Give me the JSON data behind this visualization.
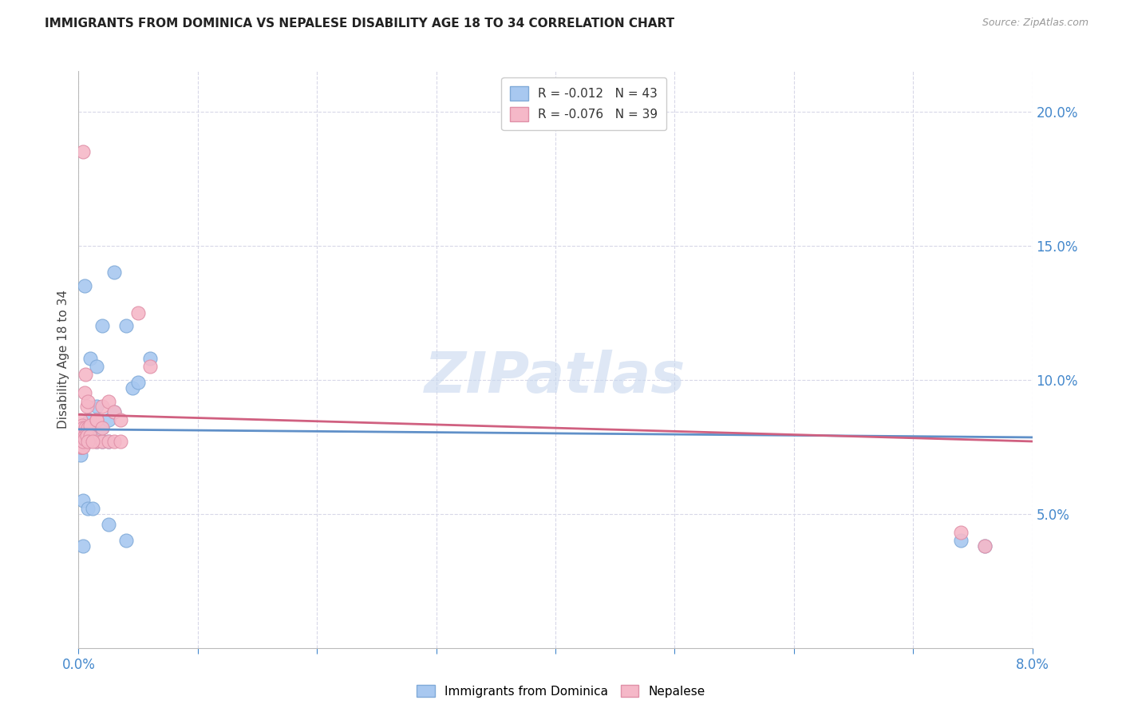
{
  "title": "IMMIGRANTS FROM DOMINICA VS NEPALESE DISABILITY AGE 18 TO 34 CORRELATION CHART",
  "source": "Source: ZipAtlas.com",
  "ylabel": "Disability Age 18 to 34",
  "legend_entries": [
    {
      "label": "Immigrants from Dominica",
      "R": "-0.012",
      "N": "43",
      "color": "#a8c8f0"
    },
    {
      "label": "Nepalese",
      "R": "-0.076",
      "N": "39",
      "color": "#f5b8c8"
    }
  ],
  "x_min": 0.0,
  "x_max": 0.08,
  "y_min": 0.0,
  "y_max": 0.215,
  "yticks": [
    0.05,
    0.1,
    0.15,
    0.2
  ],
  "ytick_labels": [
    "5.0%",
    "10.0%",
    "15.0%",
    "20.0%"
  ],
  "xticks": [
    0.0,
    0.01,
    0.02,
    0.03,
    0.04,
    0.05,
    0.06,
    0.07,
    0.08
  ],
  "watermark": "ZIPatlas",
  "blue_scatter": [
    [
      0.0005,
      0.135
    ],
    [
      0.001,
      0.108
    ],
    [
      0.0008,
      0.083
    ],
    [
      0.0015,
      0.105
    ],
    [
      0.002,
      0.12
    ],
    [
      0.0002,
      0.076
    ],
    [
      0.0002,
      0.072
    ],
    [
      0.0003,
      0.082
    ],
    [
      0.0003,
      0.079
    ],
    [
      0.0004,
      0.08
    ],
    [
      0.0004,
      0.079
    ],
    [
      0.0005,
      0.082
    ],
    [
      0.0005,
      0.079
    ],
    [
      0.0006,
      0.079
    ],
    [
      0.0002,
      0.075
    ],
    [
      0.0003,
      0.075
    ],
    [
      0.0003,
      0.075
    ],
    [
      0.0004,
      0.076
    ],
    [
      0.0005,
      0.076
    ],
    [
      0.0006,
      0.077
    ],
    [
      0.0007,
      0.077
    ],
    [
      0.0009,
      0.085
    ],
    [
      0.0012,
      0.082
    ],
    [
      0.0015,
      0.09
    ],
    [
      0.002,
      0.082
    ],
    [
      0.0025,
      0.085
    ],
    [
      0.003,
      0.088
    ],
    [
      0.0015,
      0.077
    ],
    [
      0.002,
      0.077
    ],
    [
      0.0025,
      0.077
    ],
    [
      0.003,
      0.14
    ],
    [
      0.004,
      0.12
    ],
    [
      0.0045,
      0.097
    ],
    [
      0.005,
      0.099
    ],
    [
      0.006,
      0.108
    ],
    [
      0.0004,
      0.055
    ],
    [
      0.0008,
      0.052
    ],
    [
      0.0012,
      0.052
    ],
    [
      0.0025,
      0.046
    ],
    [
      0.004,
      0.04
    ],
    [
      0.074,
      0.04
    ],
    [
      0.076,
      0.038
    ],
    [
      0.0004,
      0.038
    ]
  ],
  "pink_scatter": [
    [
      0.0004,
      0.185
    ],
    [
      0.0006,
      0.102
    ],
    [
      0.0005,
      0.095
    ],
    [
      0.0007,
      0.09
    ],
    [
      0.0008,
      0.092
    ],
    [
      0.0002,
      0.085
    ],
    [
      0.0003,
      0.083
    ],
    [
      0.0004,
      0.082
    ],
    [
      0.0004,
      0.08
    ],
    [
      0.0005,
      0.079
    ],
    [
      0.0006,
      0.082
    ],
    [
      0.0007,
      0.081
    ],
    [
      0.0008,
      0.082
    ],
    [
      0.001,
      0.083
    ],
    [
      0.0015,
      0.085
    ],
    [
      0.0002,
      0.075
    ],
    [
      0.0003,
      0.075
    ],
    [
      0.0004,
      0.075
    ],
    [
      0.0004,
      0.077
    ],
    [
      0.0005,
      0.078
    ],
    [
      0.0007,
      0.079
    ],
    [
      0.001,
      0.079
    ],
    [
      0.0015,
      0.077
    ],
    [
      0.002,
      0.077
    ],
    [
      0.002,
      0.09
    ],
    [
      0.0025,
      0.092
    ],
    [
      0.003,
      0.088
    ],
    [
      0.0035,
      0.085
    ],
    [
      0.005,
      0.125
    ],
    [
      0.006,
      0.105
    ],
    [
      0.0008,
      0.077
    ],
    [
      0.0012,
      0.077
    ],
    [
      0.0015,
      0.085
    ],
    [
      0.002,
      0.082
    ],
    [
      0.0025,
      0.077
    ],
    [
      0.003,
      0.077
    ],
    [
      0.074,
      0.043
    ],
    [
      0.076,
      0.038
    ],
    [
      0.0035,
      0.077
    ]
  ],
  "blue_line": [
    [
      0.0,
      0.0815
    ],
    [
      0.08,
      0.0785
    ]
  ],
  "pink_line": [
    [
      0.0,
      0.087
    ],
    [
      0.08,
      0.077
    ]
  ],
  "blue_color": "#a8c8f0",
  "pink_color": "#f5b8c8",
  "blue_edge_color": "#80aad8",
  "pink_edge_color": "#e090a8",
  "blue_line_color": "#6090c8",
  "pink_line_color": "#d06080",
  "background_color": "#ffffff",
  "grid_color": "#d8d8e8",
  "title_color": "#222222",
  "axis_label_color": "#4488cc"
}
